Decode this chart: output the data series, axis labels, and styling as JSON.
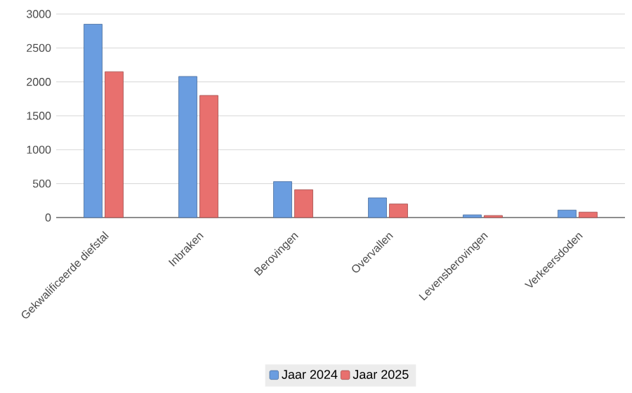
{
  "chart_data": {
    "type": "bar",
    "categories": [
      "Gekwalificeerde diefstal",
      "Inbraken",
      "Berovingen",
      "Overvallen",
      "Levensberovingen",
      "Verkeersdoden"
    ],
    "series": [
      {
        "name": "Jaar 2024",
        "color": "#6a9de0",
        "values": [
          2850,
          2080,
          530,
          290,
          40,
          110
        ]
      },
      {
        "name": "Jaar 2025",
        "color": "#e8706e",
        "values": [
          2150,
          1800,
          410,
          200,
          30,
          80
        ]
      }
    ],
    "ylim": [
      0,
      3000
    ],
    "yticks": [
      0,
      500,
      1000,
      1500,
      2000,
      2500,
      3000
    ],
    "grid": "y",
    "legend": "bottom"
  }
}
